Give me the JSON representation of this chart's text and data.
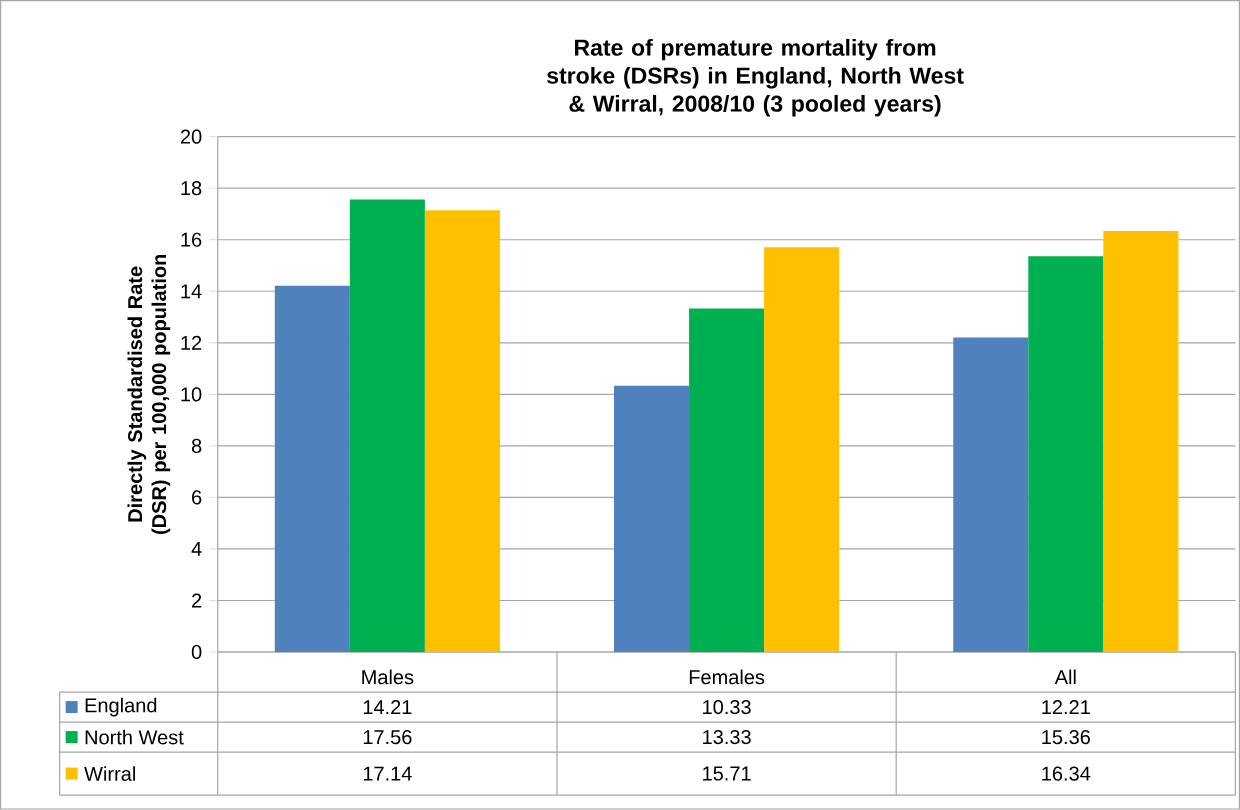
{
  "chart_data": {
    "type": "bar",
    "title": "Rate of premature mortality from stroke (DSRs) in England, North West & Wirral, 2008/10 (3 pooled years)",
    "ylabel": "Directly Standardised Rate (DSR) per 100,000 population",
    "categories": [
      "Males",
      "Females",
      "All"
    ],
    "series": [
      {
        "name": "England",
        "color": "#4f81bd",
        "values": [
          14.21,
          10.33,
          12.21
        ]
      },
      {
        "name": "North West",
        "color": "#00b050",
        "values": [
          17.56,
          13.33,
          15.36
        ]
      },
      {
        "name": "Wirral",
        "color": "#ffc000",
        "values": [
          17.14,
          15.71,
          16.34
        ]
      }
    ],
    "ylim": [
      0,
      20
    ],
    "yticks": [
      0,
      2,
      4,
      6,
      8,
      10,
      12,
      14,
      16,
      18,
      20
    ],
    "grid": "y",
    "legend": "bottom",
    "data_labels": true
  }
}
